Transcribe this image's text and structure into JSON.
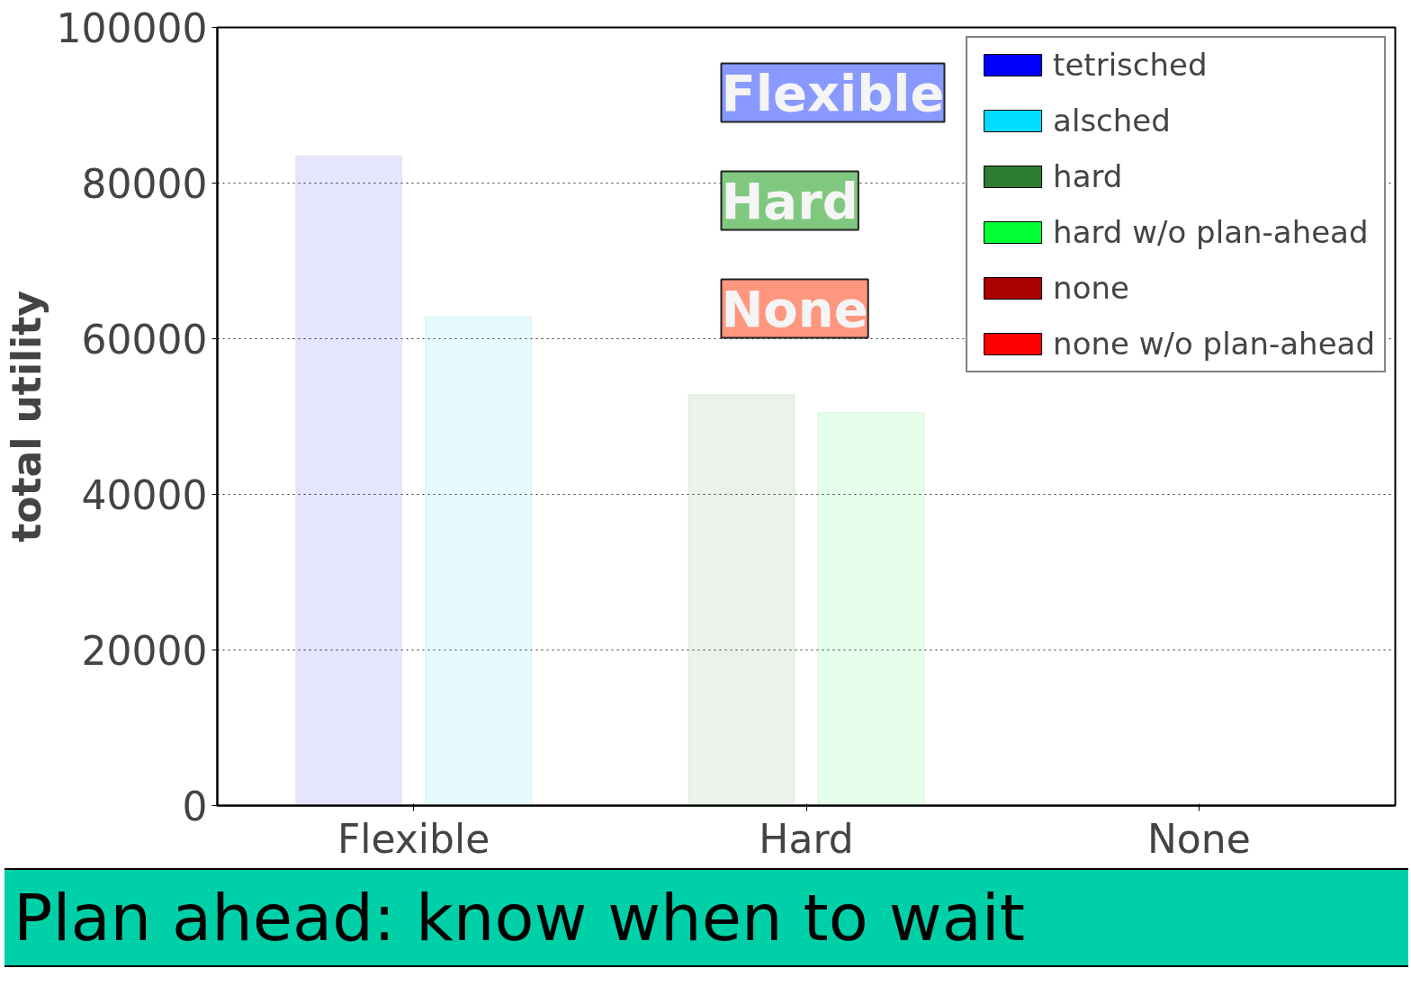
{
  "chart_data": {
    "type": "bar",
    "ylabel": "total utility",
    "categories": [
      "Flexible",
      "Hard",
      "None"
    ],
    "series": [
      {
        "name": "tetrisched",
        "color": "#0000ff",
        "values": [
          83500,
          null,
          null
        ]
      },
      {
        "name": "alsched",
        "color": "#00dcff",
        "values": [
          62800,
          null,
          null
        ]
      },
      {
        "name": "hard",
        "color": "#2e7d32",
        "values": [
          null,
          52800,
          null
        ]
      },
      {
        "name": "hard w/o plan-ahead",
        "color": "#00ff33",
        "values": [
          null,
          50500,
          null
        ]
      },
      {
        "name": "none",
        "color": "#aa0000",
        "values": [
          null,
          null,
          null
        ]
      },
      {
        "name": "none w/o plan-ahead",
        "color": "#ff0000",
        "values": [
          null,
          null,
          null
        ]
      }
    ],
    "ylim": [
      0,
      100000
    ],
    "yticks": [
      0,
      20000,
      40000,
      60000,
      80000,
      100000
    ],
    "grid": "y",
    "legend": "top right",
    "annotations": [
      "Flexible",
      "Hard",
      "None",
      "Plan ahead: know when to wait"
    ]
  }
}
